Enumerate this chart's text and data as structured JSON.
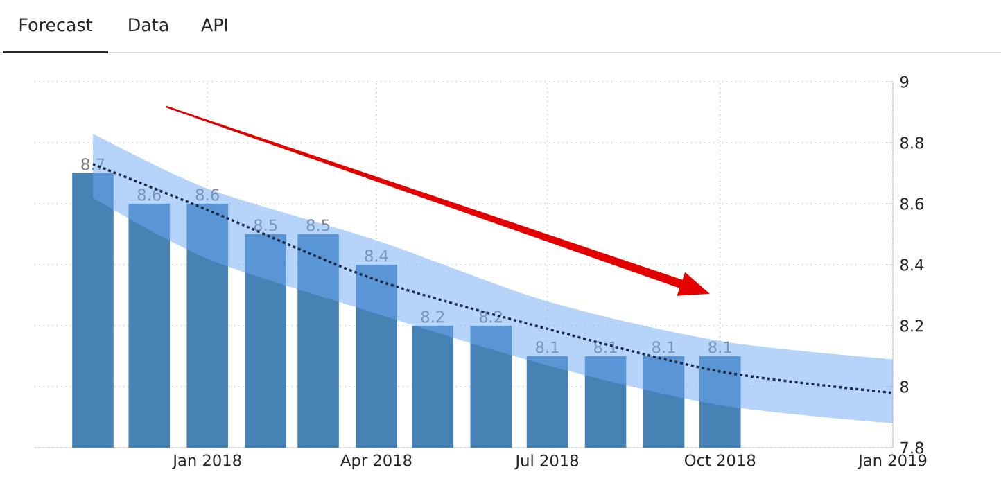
{
  "chart_data": {
    "type": "bar",
    "annotations": [
      "Forecast",
      "Data",
      "API"
    ],
    "xlim": [
      "2017-10-01",
      "2019-01-01"
    ],
    "xticks": [
      {
        "value": "2018-01-01",
        "label": "Jan 2018"
      },
      {
        "value": "2018-04-01",
        "label": "Apr 2018"
      },
      {
        "value": "2018-07-01",
        "label": "Jul 2018"
      },
      {
        "value": "2018-10-01",
        "label": "Oct 2018"
      },
      {
        "value": "2019-01-01",
        "label": "Jan 2019"
      }
    ],
    "ylim": [
      7.8,
      9
    ],
    "yticks": [
      7.8,
      8,
      8.2,
      8.4,
      8.6,
      8.8,
      9
    ],
    "grid": true,
    "series": [
      {
        "color": "#4682b4",
        "value_labels": [
          "8.7",
          "8.6",
          "8.6",
          "8.5",
          "8.5",
          "8.4",
          "8.2",
          "8.2",
          "8.1",
          "8.1",
          "8.1",
          "8.1"
        ],
        "x": [
          "2017-11-01",
          "2017-12-01",
          "2018-01-01",
          "2018-02-01",
          "2018-03-01",
          "2018-04-01",
          "2018-05-01",
          "2018-06-01",
          "2018-07-01",
          "2018-08-01",
          "2018-09-01",
          "2018-10-01"
        ],
        "values": [
          8.7,
          8.6,
          8.6,
          8.5,
          8.5,
          8.4,
          8.2,
          8.2,
          8.1,
          8.1,
          8.1,
          8.1
        ]
      },
      {
        "type": "line",
        "color": "#1c2a44",
        "line_style": "dotted",
        "x": [
          "2017-11-01",
          "2018-01-01",
          "2018-04-01",
          "2018-07-01",
          "2018-10-01",
          "2019-01-01"
        ],
        "values": [
          8.73,
          8.58,
          8.35,
          8.19,
          8.05,
          7.98
        ],
        "lower": [
          8.62,
          8.42,
          8.24,
          8.07,
          7.94,
          7.88
        ],
        "upper": [
          8.83,
          8.65,
          8.48,
          8.28,
          8.15,
          8.09
        ]
      }
    ]
  }
}
